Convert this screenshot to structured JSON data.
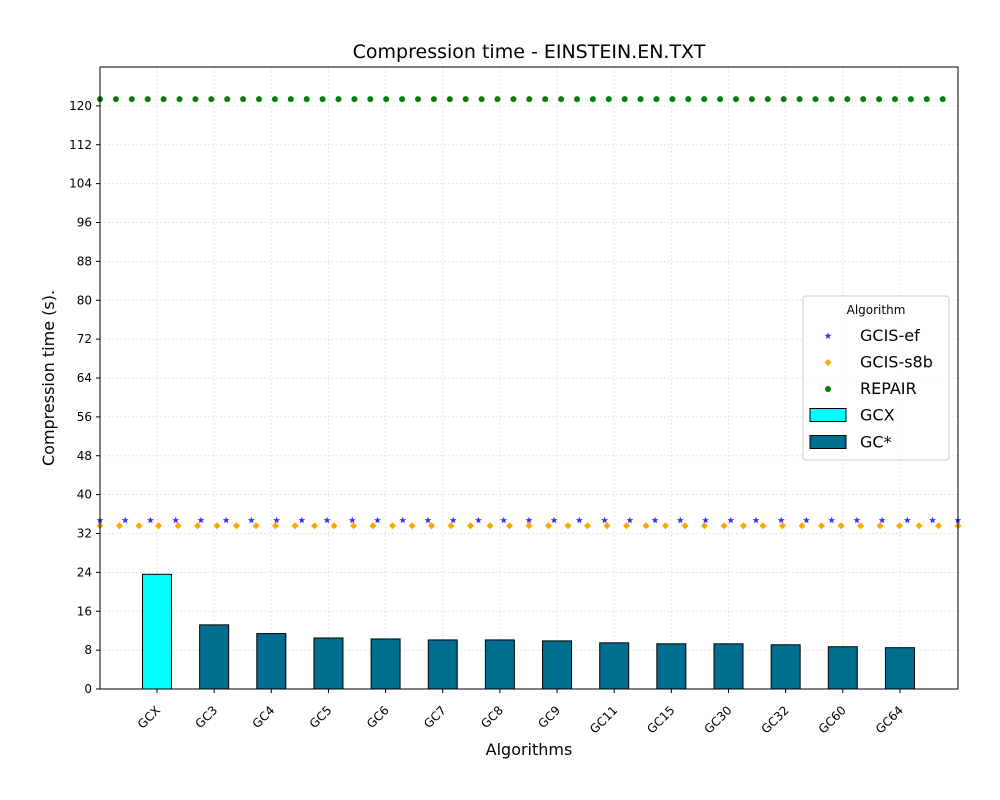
{
  "chart_data": {
    "type": "bar",
    "title": "Compression time -  EINSTEIN.EN.TXT",
    "xlabel": "Algorithms",
    "ylabel": "Compression time (s).",
    "ylim": [
      0,
      128
    ],
    "yticks": [
      0,
      8,
      16,
      24,
      32,
      40,
      48,
      56,
      64,
      72,
      80,
      88,
      96,
      104,
      112,
      120
    ],
    "grid": true,
    "legend_title": "Algorithm",
    "legend_position": "center-right",
    "categories": [
      "GCX",
      "GC3",
      "GC4",
      "GC5",
      "GC6",
      "GC7",
      "GC8",
      "GC9",
      "GC11",
      "GC15",
      "GC30",
      "GC32",
      "GC60",
      "GC64"
    ],
    "bars": [
      {
        "name": "GCX",
        "color": "#00FFFF",
        "categories": [
          "GCX"
        ],
        "values": [
          23.6
        ]
      },
      {
        "name": "GC*",
        "color": "#006E8F",
        "categories": [
          "GC3",
          "GC4",
          "GC5",
          "GC6",
          "GC7",
          "GC8",
          "GC9",
          "GC11",
          "GC15",
          "GC30",
          "GC32",
          "GC60",
          "GC64"
        ],
        "values": [
          13.2,
          11.4,
          10.5,
          10.3,
          10.1,
          10.1,
          9.9,
          9.5,
          9.3,
          9.3,
          9.1,
          8.7,
          8.5
        ]
      }
    ],
    "reference_lines": [
      {
        "name": "GCIS-ef",
        "value": 34.7,
        "marker": "star",
        "color": "#3333FF"
      },
      {
        "name": "GCIS-s8b",
        "value": 33.6,
        "marker": "diamond",
        "color": "#FFA500"
      },
      {
        "name": "REPAIR",
        "value": 121.4,
        "marker": "circle",
        "color": "#008000"
      }
    ]
  }
}
